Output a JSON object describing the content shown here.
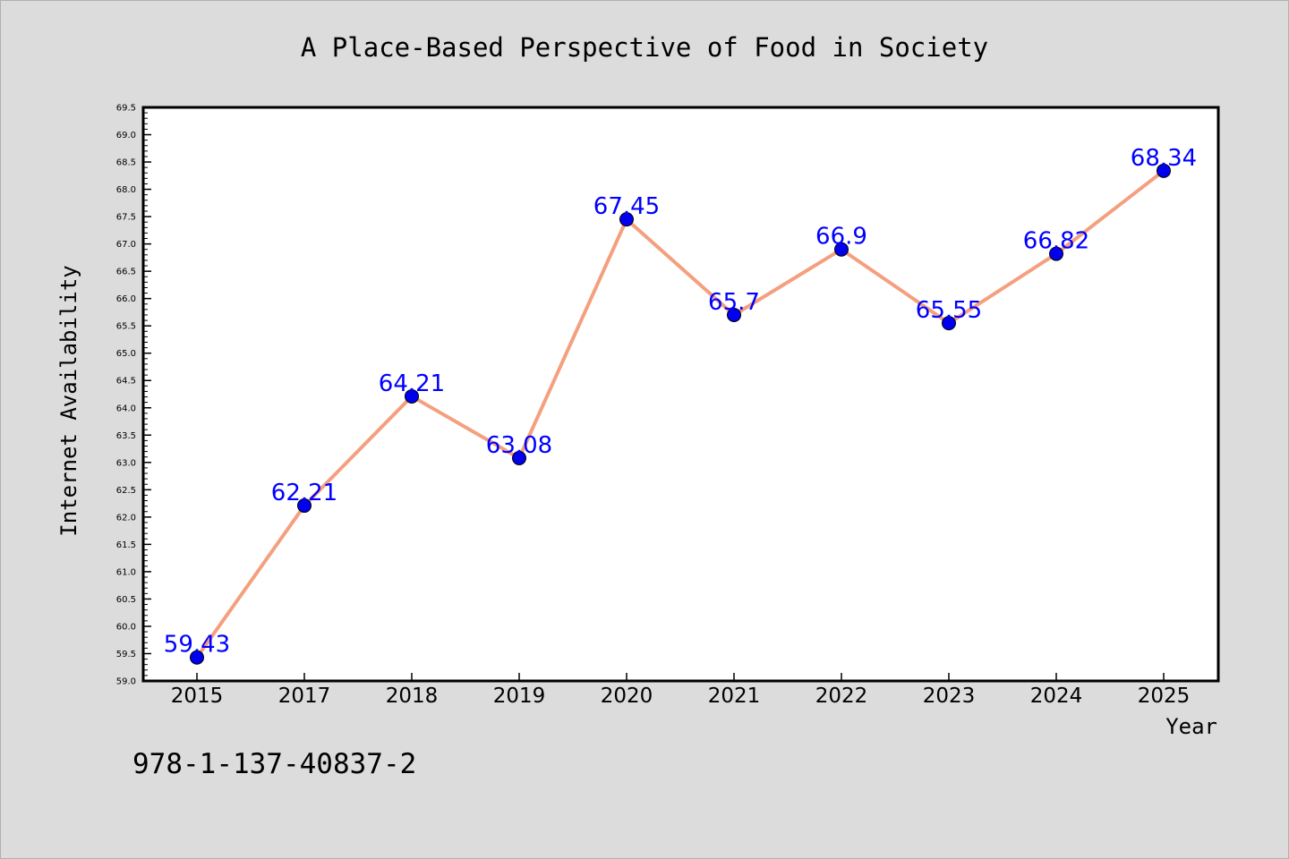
{
  "chart_data": {
    "type": "line",
    "title": "A Place-Based Perspective of Food in Society",
    "xlabel": "Year",
    "ylabel": "Internet Availability",
    "categories": [
      "2015",
      "2017",
      "2018",
      "2019",
      "2020",
      "2021",
      "2022",
      "2023",
      "2024",
      "2025"
    ],
    "values": [
      59.43,
      62.21,
      64.21,
      63.08,
      67.45,
      65.7,
      66.9,
      65.55,
      66.82,
      68.34
    ],
    "data_labels": [
      "59.43",
      "62.21",
      "64.21",
      "63.08",
      "67.45",
      "65.7",
      "66.9",
      "65.55",
      "66.82",
      "68.34"
    ],
    "ylim": [
      59.0,
      69.5
    ],
    "yticks": [
      "59.0",
      "59.5",
      "60.0",
      "60.5",
      "61.0",
      "61.5",
      "62.0",
      "62.5",
      "63.0",
      "63.5",
      "64.0",
      "64.5",
      "65.0",
      "65.5",
      "66.0",
      "66.5",
      "67.0",
      "67.5",
      "68.0",
      "68.5",
      "69.0",
      "69.5"
    ],
    "grid": false,
    "line_color": "#f4a07f",
    "marker_color": "#0000ee",
    "label_color": "#0000ff",
    "annotation": "978-1-137-40837-2"
  }
}
